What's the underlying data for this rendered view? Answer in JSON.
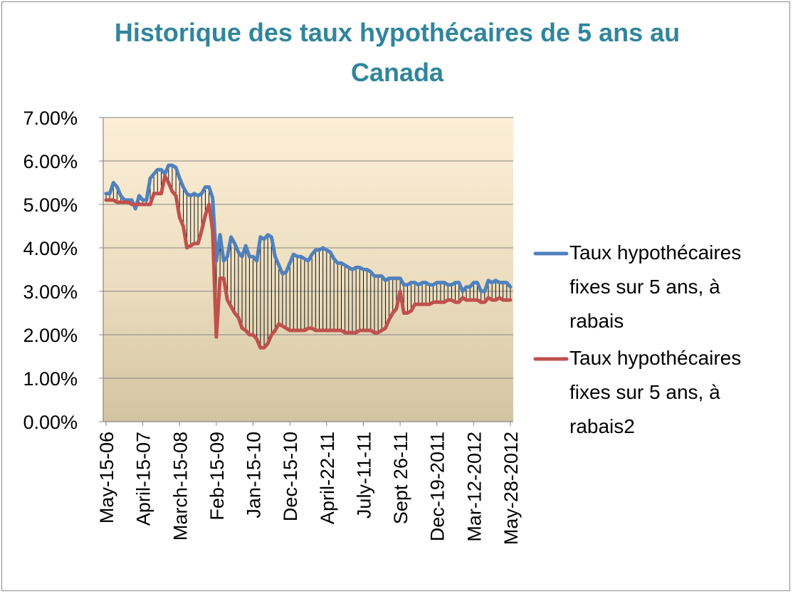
{
  "chart_data": {
    "type": "line",
    "title_lines": [
      "Historique des taux hypothécaires de 5 ans au",
      "Canada"
    ],
    "xlabel": "",
    "ylabel": "",
    "ylim": [
      0,
      0.07
    ],
    "y_ticks": [
      "0.00%",
      "1.00%",
      "2.00%",
      "3.00%",
      "4.00%",
      "5.00%",
      "6.00%",
      "7.00%"
    ],
    "x_tick_labels": [
      "May-15-06",
      "April-15-07",
      "March-15-08",
      "Feb-15-09",
      "Jan-15-10",
      "Dec-15-10",
      "April-22-11",
      "July-11-11",
      "Sept 26-11",
      "Dec-19-2011",
      "Mar-12-2012",
      "May-28-2012"
    ],
    "x_tick_positions": [
      0,
      10,
      20,
      30,
      40,
      50,
      60,
      70,
      80,
      90,
      100,
      110
    ],
    "gridlines": true,
    "drop_lines": true,
    "legend_position": "right",
    "series": [
      {
        "name_lines": [
          "Taux hypothécaires",
          "fixes sur 5 ans, à",
          "rabais"
        ],
        "color": "#4F81BD",
        "x": [
          0,
          1,
          2,
          3,
          4,
          5,
          6,
          7,
          8,
          9,
          10,
          11,
          12,
          13,
          14,
          15,
          16,
          17,
          18,
          19,
          20,
          21,
          22,
          23,
          24,
          25,
          26,
          27,
          28,
          29,
          30,
          31,
          32,
          33,
          34,
          35,
          36,
          37,
          38,
          39,
          40,
          41,
          42,
          43,
          44,
          45,
          46,
          47,
          48,
          49,
          50,
          51,
          52,
          53,
          54,
          55,
          56,
          57,
          58,
          59,
          60,
          61,
          62,
          63,
          64,
          65,
          66,
          67,
          68,
          69,
          70,
          71,
          72,
          73,
          74,
          75,
          76,
          77,
          78,
          79,
          80,
          81,
          82,
          83,
          84,
          85,
          86,
          87,
          88,
          89,
          90,
          91,
          92,
          93,
          94,
          95,
          96,
          97,
          98,
          99,
          100,
          101,
          102,
          103,
          104,
          105,
          106,
          107,
          108,
          109,
          110
        ],
        "values": [
          0.0525,
          0.0525,
          0.055,
          0.054,
          0.052,
          0.051,
          0.051,
          0.051,
          0.049,
          0.052,
          0.051,
          0.051,
          0.056,
          0.057,
          0.058,
          0.058,
          0.057,
          0.059,
          0.059,
          0.0585,
          0.056,
          0.054,
          0.0525,
          0.052,
          0.0525,
          0.052,
          0.0525,
          0.054,
          0.054,
          0.0515,
          0.037,
          0.043,
          0.037,
          0.038,
          0.0425,
          0.041,
          0.039,
          0.038,
          0.0405,
          0.038,
          0.038,
          0.037,
          0.0425,
          0.042,
          0.043,
          0.0425,
          0.038,
          0.036,
          0.034,
          0.0345,
          0.0365,
          0.0385,
          0.038,
          0.038,
          0.0375,
          0.037,
          0.0385,
          0.0395,
          0.0395,
          0.04,
          0.0395,
          0.039,
          0.0375,
          0.0365,
          0.0365,
          0.036,
          0.0355,
          0.035,
          0.0355,
          0.0355,
          0.035,
          0.035,
          0.0345,
          0.0335,
          0.0335,
          0.0335,
          0.0325,
          0.033,
          0.033,
          0.033,
          0.033,
          0.0315,
          0.0315,
          0.032,
          0.032,
          0.0315,
          0.032,
          0.032,
          0.0315,
          0.0315,
          0.032,
          0.032,
          0.032,
          0.0315,
          0.0315,
          0.032,
          0.032,
          0.03,
          0.031,
          0.031,
          0.032,
          0.032,
          0.03,
          0.03,
          0.0325,
          0.032,
          0.0325,
          0.032,
          0.032,
          0.032,
          0.031
        ]
      },
      {
        "name_lines": [
          "Taux hypothécaires",
          "fixes sur 5 ans, à",
          "rabais2"
        ],
        "color": "#C0504D",
        "x": [
          0,
          1,
          2,
          3,
          4,
          5,
          6,
          7,
          8,
          9,
          10,
          11,
          12,
          13,
          14,
          15,
          16,
          17,
          18,
          19,
          20,
          21,
          22,
          23,
          24,
          25,
          26,
          27,
          28,
          29,
          30,
          31,
          32,
          33,
          34,
          35,
          36,
          37,
          38,
          39,
          40,
          41,
          42,
          43,
          44,
          45,
          46,
          47,
          48,
          49,
          50,
          51,
          52,
          53,
          54,
          55,
          56,
          57,
          58,
          59,
          60,
          61,
          62,
          63,
          64,
          65,
          66,
          67,
          68,
          69,
          70,
          71,
          72,
          73,
          74,
          75,
          76,
          77,
          78,
          79,
          80,
          81,
          82,
          83,
          84,
          85,
          86,
          87,
          88,
          89,
          90,
          91,
          92,
          93,
          94,
          95,
          96,
          97,
          98,
          99,
          100,
          101,
          102,
          103,
          104,
          105,
          106,
          107,
          108,
          109,
          110
        ],
        "values": [
          0.051,
          0.051,
          0.051,
          0.0505,
          0.0505,
          0.0505,
          0.0505,
          0.05,
          0.05,
          0.05,
          0.05,
          0.05,
          0.05,
          0.0525,
          0.0525,
          0.0525,
          0.0565,
          0.055,
          0.053,
          0.052,
          0.047,
          0.045,
          0.04,
          0.0405,
          0.041,
          0.041,
          0.044,
          0.0475,
          0.05,
          0.044,
          0.0195,
          0.033,
          0.033,
          0.028,
          0.0265,
          0.025,
          0.024,
          0.0215,
          0.021,
          0.02,
          0.02,
          0.019,
          0.017,
          0.017,
          0.018,
          0.02,
          0.021,
          0.0225,
          0.022,
          0.0215,
          0.021,
          0.021,
          0.021,
          0.021,
          0.021,
          0.0215,
          0.0215,
          0.021,
          0.021,
          0.021,
          0.021,
          0.021,
          0.021,
          0.021,
          0.021,
          0.0205,
          0.0205,
          0.0205,
          0.0205,
          0.021,
          0.021,
          0.021,
          0.021,
          0.0205,
          0.0205,
          0.021,
          0.0215,
          0.0235,
          0.025,
          0.026,
          0.03,
          0.025,
          0.025,
          0.0255,
          0.027,
          0.027,
          0.027,
          0.027,
          0.027,
          0.0275,
          0.0275,
          0.0275,
          0.0275,
          0.028,
          0.028,
          0.0275,
          0.0275,
          0.0285,
          0.028,
          0.028,
          0.028,
          0.028,
          0.0275,
          0.0275,
          0.0285,
          0.028,
          0.028,
          0.0285,
          0.028,
          0.028,
          0.028
        ]
      }
    ]
  }
}
